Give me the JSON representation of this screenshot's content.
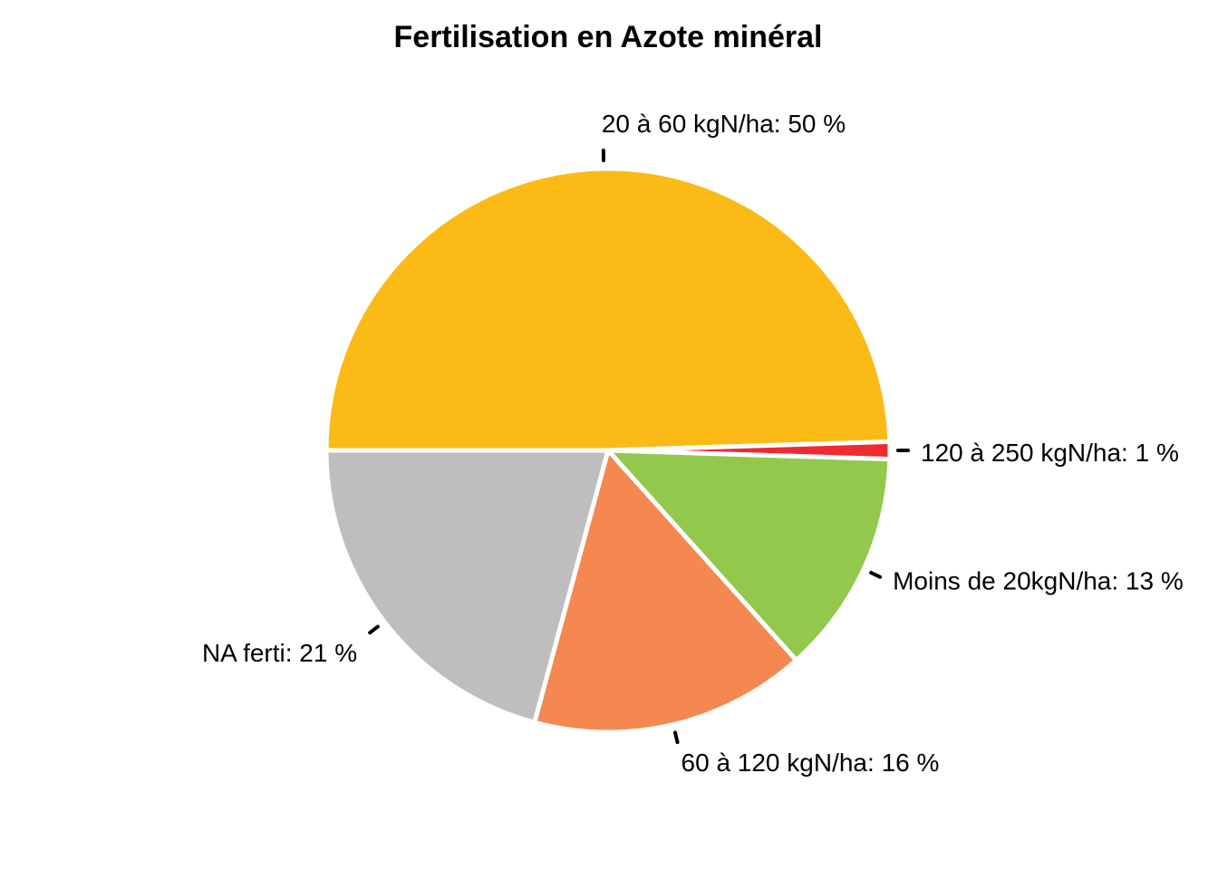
{
  "chart_data": {
    "type": "pie",
    "title": "Fertilisation en Azote minéral",
    "legend": "none",
    "slices": [
      {
        "label": "20 à 60 kgN/ha: 50 %",
        "value": 50,
        "color": "#FBBA16"
      },
      {
        "label": "120 à 250 kgN/ha: 1 %",
        "value": 1,
        "color": "#EE2A32"
      },
      {
        "label": "Moins de 20kgN/ha: 13 %",
        "value": 13,
        "color": "#92C84C"
      },
      {
        "label": "60 à 120 kgN/ha: 16 %",
        "value": 16,
        "color": "#F48850"
      },
      {
        "label": "NA ferti: 21 %",
        "value": 21,
        "color": "#BEBEBE"
      }
    ]
  }
}
